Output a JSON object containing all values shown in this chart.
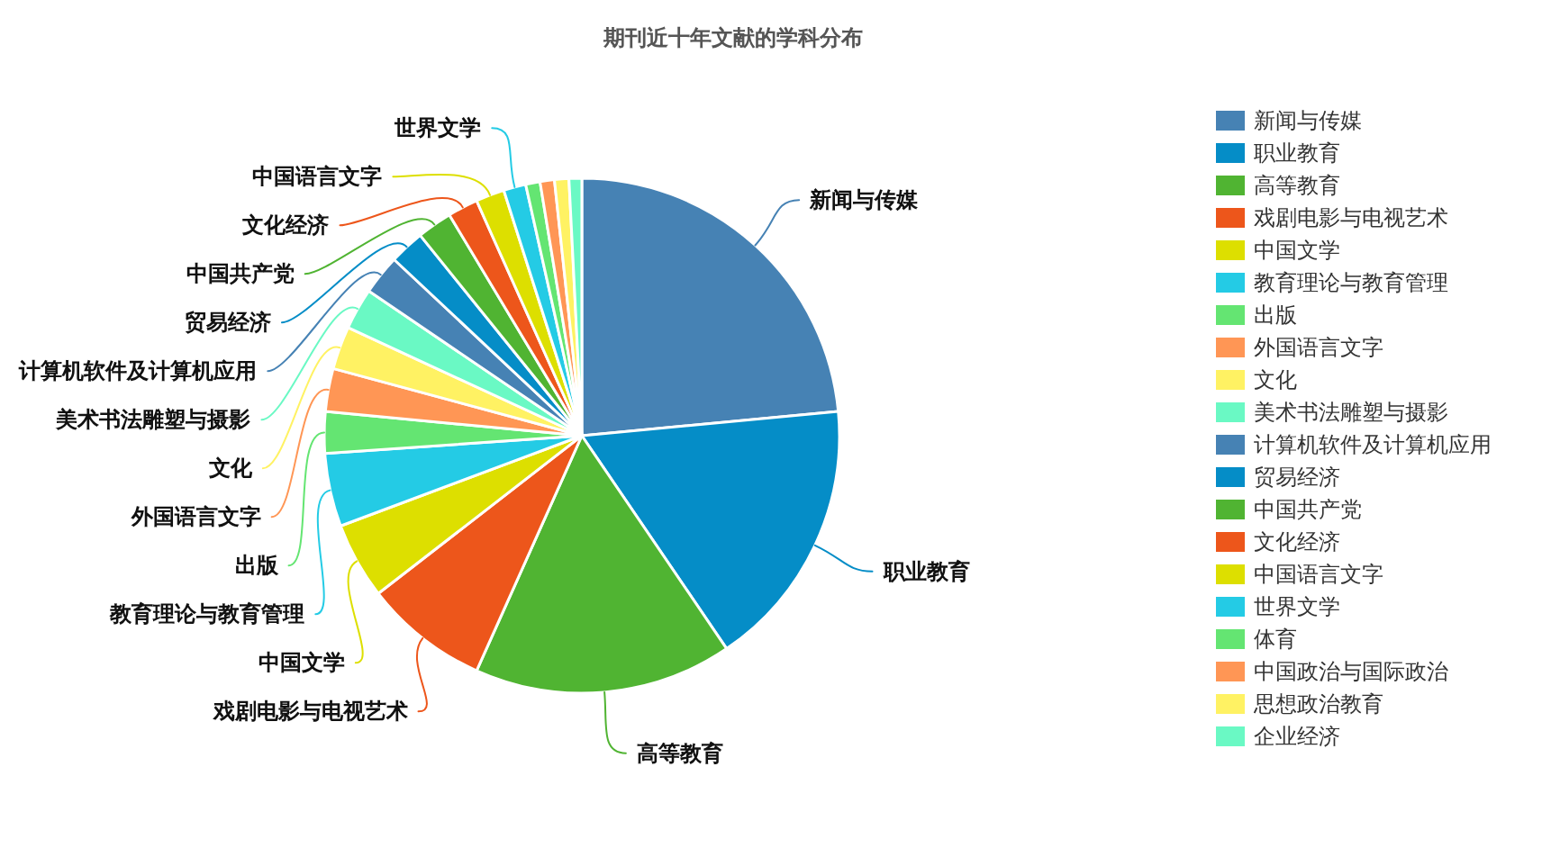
{
  "chart_data": {
    "type": "pie",
    "title": "期刊近十年文献的学科分布",
    "categories": [
      "新闻与传媒",
      "职业教育",
      "高等教育",
      "戏剧电影与电视艺术",
      "中国文学",
      "教育理论与教育管理",
      "出版",
      "外国语言文字",
      "文化",
      "美术书法雕塑与摄影",
      "计算机软件及计算机应用",
      "贸易经济",
      "中国共产党",
      "文化经济",
      "中国语言文字",
      "世界文学",
      "体育",
      "中国政治与国际政治",
      "思想政治教育",
      "企业经济"
    ],
    "values": [
      23.5,
      17,
      16.2,
      7.8,
      4.8,
      4.6,
      2.6,
      2.7,
      2.7,
      2.6,
      2.5,
      2.2,
      2.2,
      1.9,
      1.8,
      1.4,
      0.9,
      0.9,
      0.9,
      0.8
    ],
    "colors": [
      "#4682b4",
      "#058dc7",
      "#50b432",
      "#ed561b",
      "#dddf00",
      "#24cbe5",
      "#64e572",
      "#ff9655",
      "#fff263",
      "#6af9c4",
      "#4682b4",
      "#058dc7",
      "#50b432",
      "#ed561b",
      "#dddf00",
      "#24cbe5",
      "#64e572",
      "#ff9655",
      "#fff263",
      "#6af9c4"
    ],
    "legend": "right"
  }
}
